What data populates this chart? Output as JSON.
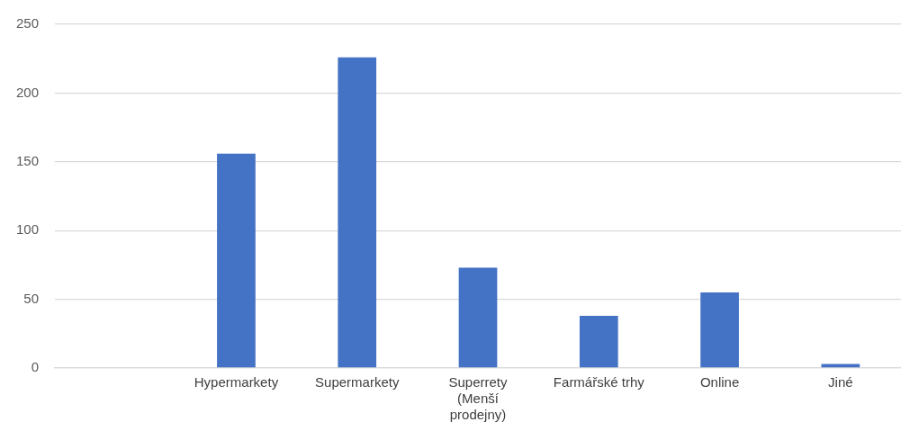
{
  "chart_data": {
    "type": "bar",
    "categories": [
      null,
      "Hypermarkety",
      "Supermarkety",
      "Superrety (Menší prodejny)",
      "Farmářské trhy",
      "Online",
      "Jiné"
    ],
    "values": [
      null,
      156,
      226,
      73,
      38,
      55,
      3
    ],
    "color": "#4472c4",
    "ylim": [
      0,
      250
    ],
    "yticks": [
      0,
      50,
      100,
      150,
      200,
      250
    ],
    "grid": "y"
  }
}
